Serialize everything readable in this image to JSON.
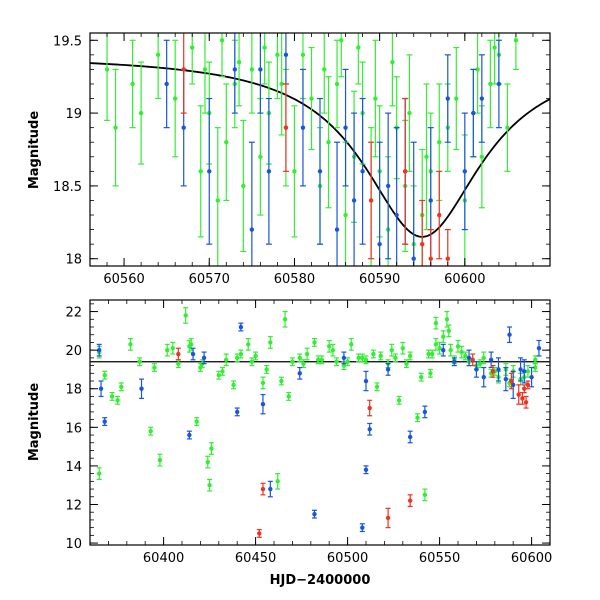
{
  "chart_data": [
    {
      "type": "scatter",
      "title": "",
      "xlabel": "",
      "ylabel": "Magnitude",
      "xlim": [
        60556,
        60610
      ],
      "ylim": [
        19.55,
        17.95
      ],
      "y_inverted": true,
      "grid": false,
      "xticks": [
        60560,
        60570,
        60580,
        60590,
        60600
      ],
      "xtick_labels": [
        "60560",
        "60570",
        "60580",
        "60590",
        "60600"
      ],
      "yticks": [
        18,
        18.5,
        19,
        19.5
      ],
      "ytick_labels": [
        "18",
        "18.5",
        "19",
        "19.5"
      ],
      "model_curve": {
        "color": "#000000",
        "baseline": 19.4,
        "peak_x": 60595,
        "peak_mag": 18.15,
        "width_days": 8.5
      },
      "series": [
        {
          "color": "#33ee33",
          "x": [
            60558,
            60559,
            60561,
            60562,
            60564,
            60566,
            60569,
            60570,
            60571,
            60572,
            60573,
            60574,
            60575,
            60576,
            60577,
            60578,
            60579,
            60580,
            60582,
            60583,
            60584,
            60585,
            60586,
            60587,
            60588,
            60589,
            60590,
            60591,
            60592,
            60593,
            60594,
            60595,
            60596,
            60598,
            60600,
            60601,
            60602,
            60603,
            60604,
            60605,
            60606,
            60568,
            60569.5,
            60571.5,
            60573.5,
            60576.5,
            60578.5,
            60581,
            60583.5,
            60585.5,
            60587.5,
            60589.5,
            60591.5,
            60593.5,
            60595.5,
            60597,
            60599,
            60601.5,
            60603.5
          ],
          "y": [
            19.3,
            18.9,
            19.2,
            19.0,
            19.4,
            19.1,
            18.6,
            19.0,
            18.4,
            18.8,
            19.2,
            18.5,
            19.3,
            18.7,
            19.0,
            19.4,
            18.9,
            18.6,
            19.1,
            18.5,
            18.8,
            19.2,
            18.3,
            18.7,
            19.0,
            18.4,
            18.6,
            18.2,
            18.9,
            18.5,
            18.1,
            18.3,
            18.6,
            18.9,
            18.4,
            19.0,
            18.7,
            19.2,
            19.4,
            18.9,
            19.5,
            19.45,
            19.3,
            19.5,
            19.35,
            19.45,
            19.2,
            19.4,
            19.3,
            19.5,
            19.45,
            19.1,
            19.35,
            19.0,
            18.7,
            18.8,
            19.1,
            19.3,
            19.45
          ],
          "err": [
            0.35,
            0.4,
            0.3,
            0.35,
            0.3,
            0.4,
            0.45,
            0.35,
            0.5,
            0.4,
            0.3,
            0.45,
            0.3,
            0.4,
            0.35,
            0.3,
            0.4,
            0.45,
            0.35,
            0.4,
            0.45,
            0.3,
            0.5,
            0.45,
            0.35,
            0.5,
            0.45,
            0.5,
            0.35,
            0.45,
            0.4,
            0.45,
            0.4,
            0.3,
            0.45,
            0.3,
            0.35,
            0.3,
            0.2,
            0.3,
            0.2,
            0.25,
            0.3,
            0.25,
            0.3,
            0.25,
            0.35,
            0.3,
            0.3,
            0.25,
            0.25,
            0.4,
            0.3,
            0.4,
            0.5,
            0.4,
            0.35,
            0.3,
            0.25
          ]
        },
        {
          "color": "#1a55dd",
          "x": [
            60565,
            60567,
            60570,
            60573,
            60575,
            60576,
            60577,
            60579,
            60581,
            60583,
            60585,
            60586,
            60587,
            60588,
            60590,
            60591,
            60592,
            60593,
            60594,
            60596,
            60598,
            60600,
            60601,
            60602,
            60604
          ],
          "y": [
            19.2,
            18.9,
            18.6,
            19.3,
            18.2,
            19.3,
            18.6,
            19.4,
            18.9,
            18.6,
            18.2,
            18.9,
            18.4,
            18.6,
            18.1,
            18.5,
            18.3,
            18.6,
            18.0,
            18.4,
            19.1,
            18.6,
            19.0,
            19.1,
            19.2
          ],
          "err": [
            0.3,
            0.4,
            0.5,
            0.3,
            0.6,
            0.3,
            0.5,
            0.2,
            0.4,
            0.5,
            0.6,
            0.4,
            0.6,
            0.5,
            0.7,
            0.5,
            0.6,
            0.5,
            0.8,
            0.5,
            0.3,
            0.4,
            0.3,
            0.3,
            0.3
          ]
        },
        {
          "color": "#ee3322",
          "x": [
            60567,
            60579,
            60589,
            60593,
            60595,
            60596,
            60597,
            60598
          ],
          "y": [
            19.3,
            18.9,
            18.4,
            18.6,
            18.1,
            18.0,
            18.3,
            18.0
          ],
          "err": [
            0.3,
            0.3,
            0.4,
            0.5,
            0.3,
            0.2,
            0.3,
            0.2
          ]
        }
      ]
    },
    {
      "type": "scatter",
      "title": "",
      "xlabel": "HJD−2400000",
      "ylabel": "Magnitude",
      "xlim": [
        60360,
        60610
      ],
      "ylim": [
        22.6,
        9.9
      ],
      "y_inverted": true,
      "grid": false,
      "xticks": [
        60400,
        60450,
        60500,
        60550,
        60600
      ],
      "xtick_labels": [
        "60400",
        "60450",
        "60500",
        "60550",
        "60600"
      ],
      "yticks": [
        10,
        12,
        14,
        16,
        18,
        20,
        22
      ],
      "ytick_labels": [
        "10",
        "12",
        "14",
        "16",
        "18",
        "20",
        "22"
      ],
      "baseline_line": {
        "y": 19.4,
        "color": "#000000"
      },
      "series": [
        {
          "color": "#33ee33",
          "x": [
            60365,
            60368,
            60372,
            60377,
            60382,
            60387,
            60393,
            60398,
            60402,
            60408,
            60412,
            60415,
            60418,
            60421,
            60424,
            60426,
            60430,
            60434,
            60438,
            60442,
            60446,
            60450,
            60454,
            60458,
            60462,
            60466,
            60470,
            60474,
            60478,
            60482,
            60486,
            60490,
            60494,
            60498,
            60502,
            60506,
            60510,
            60514,
            60518,
            60522,
            60526,
            60530,
            60534,
            60538,
            60542,
            60546,
            60550,
            60554,
            60558,
            60562,
            60566,
            60570,
            60574,
            60578,
            60582,
            60586,
            60590,
            60594,
            60598,
            60602,
            60365,
            60375,
            60395,
            60405,
            60414,
            60420,
            60425,
            60432,
            60440,
            60448,
            60456,
            60464,
            60468,
            60476,
            60484,
            60492,
            60500,
            60508,
            60516,
            60524,
            60532,
            60540,
            60548,
            60556,
            60564,
            60572,
            60580,
            60588,
            60596,
            60602,
            60545,
            60552,
            60555,
            60548,
            60560,
            60544,
            60528
          ],
          "y": [
            13.6,
            18.7,
            17.6,
            18.1,
            20.3,
            19.4,
            15.8,
            14.3,
            20.0,
            19.3,
            21.8,
            20.3,
            16.3,
            19.3,
            14.2,
            14.9,
            18.7,
            19.5,
            18.2,
            19.8,
            20.3,
            19.7,
            18.3,
            20.4,
            13.2,
            21.6,
            19.4,
            19.6,
            19.8,
            20.4,
            19.5,
            20.2,
            19.4,
            19.2,
            20.3,
            19.6,
            19.5,
            19.8,
            19.7,
            19.3,
            19.6,
            20.1,
            19.7,
            16.5,
            12.5,
            19.8,
            20.1,
            21.6,
            19.5,
            19.9,
            19.4,
            19.2,
            19.6,
            18.8,
            18.6,
            19.0,
            18.9,
            18.5,
            18.9,
            19.1,
            19.9,
            17.4,
            19.1,
            20.1,
            20.2,
            19.1,
            13.0,
            18.9,
            19.6,
            19.4,
            19.0,
            18.4,
            17.6,
            19.3,
            19.5,
            20.0,
            19.4,
            19.6,
            18.1,
            20.0,
            19.3,
            18.6,
            20.3,
            20.0,
            19.7,
            19.3,
            18.9,
            18.3,
            18.6,
            19.5,
            18.8,
            20.7,
            21.0,
            21.4,
            20.2,
            19.8,
            17.4
          ],
          "err": [
            0.3,
            0.2,
            0.2,
            0.2,
            0.3,
            0.2,
            0.2,
            0.3,
            0.3,
            0.2,
            0.4,
            0.3,
            0.2,
            0.2,
            0.3,
            0.3,
            0.2,
            0.3,
            0.2,
            0.2,
            0.3,
            0.2,
            0.3,
            0.3,
            0.4,
            0.4,
            0.2,
            0.2,
            0.3,
            0.2,
            0.2,
            0.3,
            0.2,
            0.2,
            0.3,
            0.2,
            0.2,
            0.2,
            0.2,
            0.2,
            0.2,
            0.3,
            0.2,
            0.2,
            0.3,
            0.2,
            0.3,
            0.4,
            0.2,
            0.3,
            0.2,
            0.2,
            0.3,
            0.2,
            0.3,
            0.3,
            0.3,
            0.3,
            0.3,
            0.2,
            0.3,
            0.2,
            0.2,
            0.3,
            0.3,
            0.2,
            0.3,
            0.2,
            0.2,
            0.2,
            0.2,
            0.2,
            0.2,
            0.2,
            0.2,
            0.3,
            0.2,
            0.2,
            0.2,
            0.3,
            0.2,
            0.2,
            0.3,
            0.3,
            0.2,
            0.2,
            0.2,
            0.2,
            0.3,
            0.2,
            0.2,
            0.3,
            0.3,
            0.3,
            0.3,
            0.2,
            0.2
          ]
        },
        {
          "color": "#1a55dd",
          "x": [
            60365,
            60366,
            60368,
            60388,
            60414,
            60422,
            60440,
            60442,
            60454,
            60458,
            60474,
            60482,
            60498,
            60508,
            60510,
            60512,
            60522,
            60534,
            60542,
            60552,
            60558,
            60566,
            60570,
            60574,
            60578,
            60582,
            60586,
            60590,
            60594,
            60600,
            60604,
            60510,
            60416,
            60596,
            60588
          ],
          "y": [
            20.0,
            18.0,
            16.3,
            18.0,
            15.6,
            19.6,
            16.8,
            21.2,
            17.2,
            12.8,
            18.8,
            11.5,
            19.6,
            10.8,
            13.8,
            15.9,
            19.0,
            15.5,
            16.8,
            20.0,
            19.4,
            19.6,
            19.0,
            18.6,
            19.5,
            19.0,
            18.5,
            18.2,
            19.0,
            18.6,
            20.1,
            18.4,
            19.8,
            18.9,
            20.8
          ],
          "err": [
            0.3,
            0.4,
            0.2,
            0.5,
            0.2,
            0.3,
            0.2,
            0.2,
            0.5,
            0.4,
            0.3,
            0.2,
            0.3,
            0.2,
            0.2,
            0.3,
            0.3,
            0.3,
            0.3,
            0.3,
            0.2,
            0.4,
            0.4,
            0.5,
            0.4,
            0.6,
            0.6,
            0.7,
            0.6,
            0.5,
            0.4,
            0.5,
            0.3,
            0.6,
            0.4
          ]
        },
        {
          "color": "#ee3322",
          "x": [
            60408,
            60452,
            60454,
            60512,
            60522,
            60534,
            60568,
            60579,
            60589,
            60593,
            60595,
            60596,
            60597,
            60598
          ],
          "y": [
            19.8,
            10.5,
            12.8,
            17.0,
            11.3,
            12.2,
            19.5,
            18.9,
            18.4,
            17.7,
            17.5,
            18.0,
            17.3,
            18.2
          ],
          "err": [
            0.3,
            0.2,
            0.3,
            0.4,
            0.5,
            0.3,
            0.3,
            0.3,
            0.4,
            0.5,
            0.3,
            0.2,
            0.3,
            0.2
          ]
        }
      ]
    }
  ]
}
